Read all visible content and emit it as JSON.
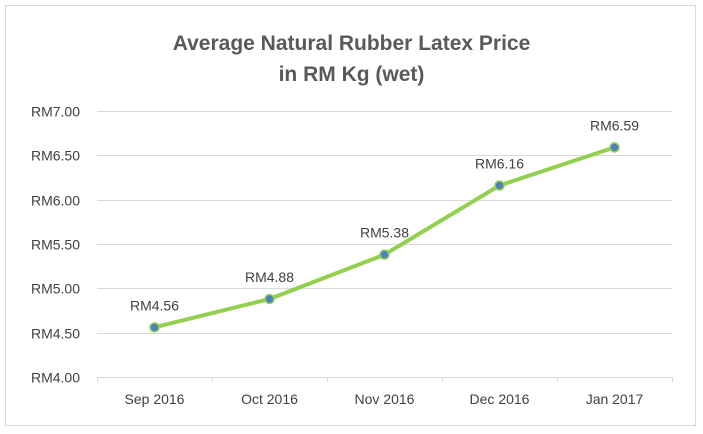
{
  "chart_data": {
    "type": "line",
    "title_line1": "Average Natural Rubber Latex Price",
    "title_line2": "in RM Kg (wet)",
    "xlabel": "",
    "ylabel": "",
    "categories": [
      "Sep 2016",
      "Oct 2016",
      "Nov 2016",
      "Dec 2016",
      "Jan 2017"
    ],
    "series": [
      {
        "values": [
          4.56,
          4.88,
          5.38,
          6.16,
          6.59
        ],
        "data_labels": [
          "RM4.56",
          "RM4.88",
          "RM5.38",
          "RM6.16",
          "RM6.59"
        ]
      }
    ],
    "ylim": [
      4.0,
      7.0
    ],
    "y_ticks": [
      4.0,
      4.5,
      5.0,
      5.5,
      6.0,
      6.5,
      7.0
    ],
    "y_tick_labels": [
      "RM4.00",
      "RM4.50",
      "RM5.00",
      "RM5.50",
      "RM6.00",
      "RM6.50",
      "RM7.00"
    ],
    "grid": "horizontal",
    "legend": "none",
    "colors": {
      "line": "#92d050",
      "marker_fill": "#4f81bd",
      "marker_edge": "#92d050",
      "grid": "#d9d9d9",
      "text": "#404040",
      "title": "#595959"
    }
  }
}
